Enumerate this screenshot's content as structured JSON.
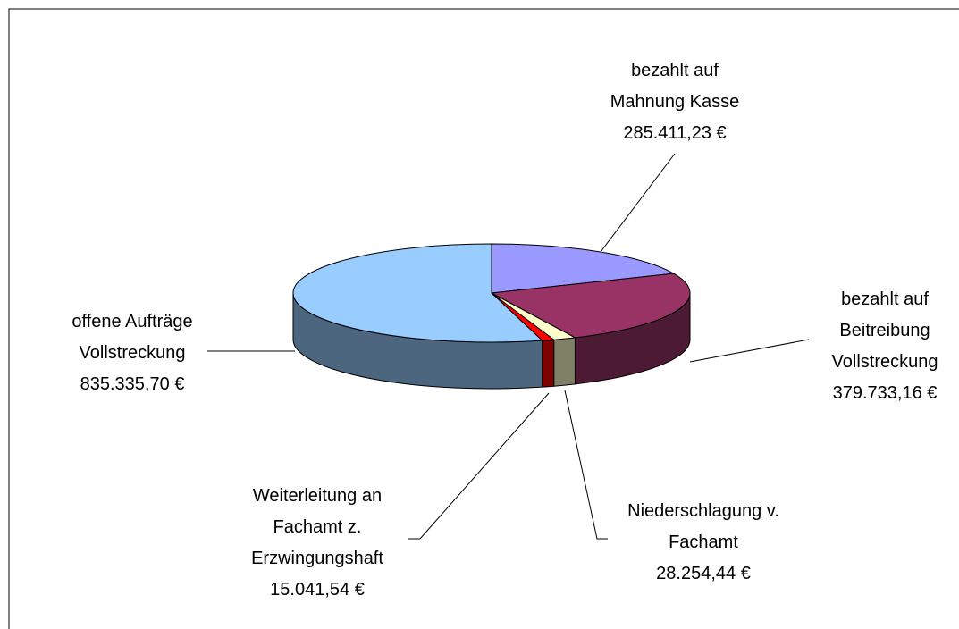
{
  "chart_data": {
    "type": "pie3d",
    "categories": [
      "bezahlt auf Mahnung Kasse",
      "bezahlt auf Beitreibung Vollstreckung",
      "Niederschlagung v. Fachamt",
      "Weiterleitung an Fachamt z. Erzwingungshaft",
      "offene Aufträge Vollstreckung"
    ],
    "values": [
      285411.23,
      379733.16,
      28254.44,
      15041.54,
      835335.7
    ],
    "value_labels": [
      "285.411,23 €",
      "379.733,16 €",
      "28.254,44 €",
      "15.041,54 €",
      "835.335,70 €"
    ],
    "colors": [
      "#9999ff",
      "#993366",
      "#ffffcc",
      "#ff0000",
      "#99ccff"
    ]
  }
}
